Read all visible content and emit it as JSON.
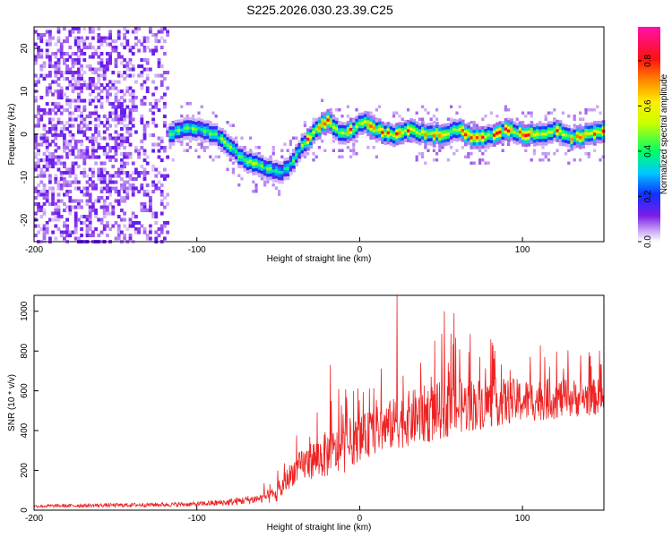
{
  "title": "S225.2026.030.23.39.C25",
  "chart_data": [
    {
      "type": "heatmap",
      "name": "frequency-spectrogram",
      "xlabel": "Height of straight line (km)",
      "ylabel": "Frequency (Hz)",
      "xlim": [
        -200,
        150
      ],
      "ylim": [
        -25,
        25
      ],
      "xticks": [
        -200,
        -100,
        0,
        100
      ],
      "yticks": [
        -20,
        -10,
        0,
        10,
        20
      ],
      "colorbar": {
        "label": "Normalized spectral amplitude",
        "range": [
          0,
          0.95
        ],
        "ticks": [
          0.0,
          0.2,
          0.4,
          0.6,
          0.8
        ]
      },
      "ridge": {
        "x": [
          -118,
          -110,
          -100,
          -90,
          -80,
          -72,
          -65,
          -58,
          -50,
          -45,
          -40,
          -35,
          -30,
          -25,
          -20,
          -15,
          -10,
          -5,
          0,
          5,
          10,
          20,
          30,
          40,
          50,
          60,
          70,
          80,
          90,
          100,
          110,
          120,
          130,
          140,
          150
        ],
        "y": [
          0,
          1,
          1.5,
          0,
          -3,
          -6,
          -7,
          -8,
          -9,
          -8,
          -5,
          -2,
          0,
          2,
          3,
          1,
          0,
          1,
          3,
          2,
          1,
          0,
          1,
          0,
          0,
          1,
          -1,
          0,
          1,
          0,
          0,
          1,
          -1,
          0,
          1
        ]
      },
      "noise_region_x": [
        -200,
        -110
      ]
    },
    {
      "type": "line",
      "name": "snr-trace",
      "xlabel": "Height of straight line (km)",
      "ylabel": "SNR (10 * v/v)",
      "xlim": [
        -200,
        150
      ],
      "ylim": [
        0,
        1080
      ],
      "xticks": [
        -200,
        -100,
        0,
        100
      ],
      "yticks": [
        0,
        200,
        400,
        600,
        800,
        1000
      ],
      "color": "#ee2222",
      "trend": {
        "x": [
          -200,
          -150,
          -100,
          -80,
          -60,
          -50,
          -45,
          -40,
          -30,
          -20,
          -10,
          0,
          10,
          20,
          30,
          40,
          60,
          80,
          100,
          120,
          150
        ],
        "y": [
          20,
          25,
          30,
          40,
          60,
          80,
          150,
          200,
          250,
          280,
          300,
          360,
          400,
          430,
          460,
          480,
          520,
          540,
          550,
          560,
          570
        ]
      },
      "spread": {
        "x": [
          -200,
          -100,
          -60,
          -40,
          -20,
          0,
          20,
          40,
          60,
          100,
          150
        ],
        "y": [
          8,
          12,
          25,
          70,
          120,
          110,
          130,
          150,
          140,
          110,
          90
        ]
      },
      "peaks": [
        {
          "x": 23,
          "y": 1080
        },
        {
          "x": 52,
          "y": 1000
        },
        {
          "x": 58,
          "y": 990
        },
        {
          "x": -18,
          "y": 730
        }
      ]
    }
  ]
}
